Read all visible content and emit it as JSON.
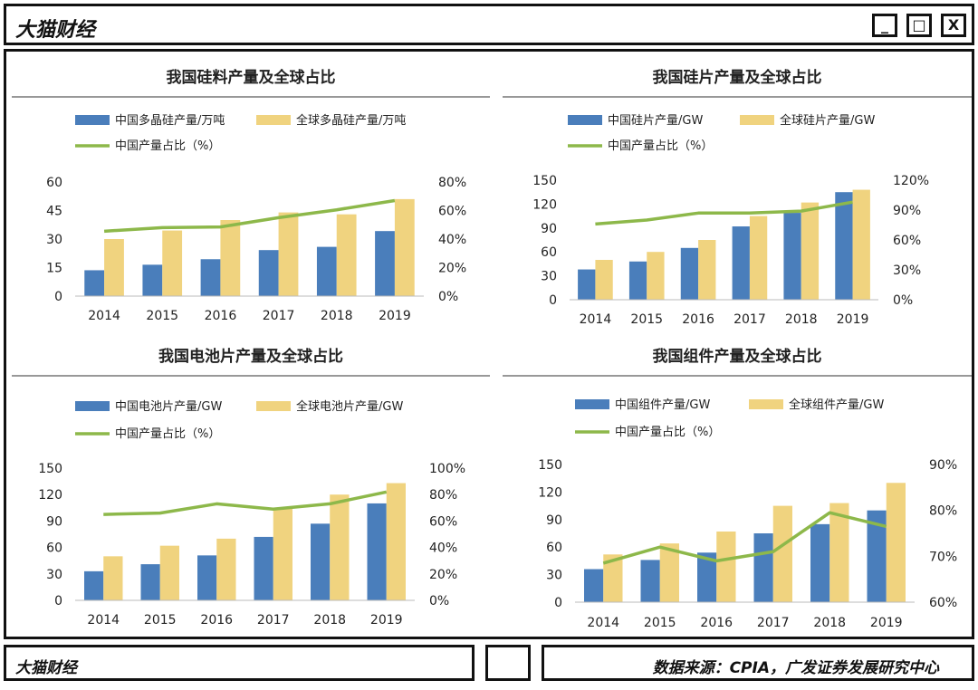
{
  "window": {
    "title": "大猫财经",
    "minimize_label": "_",
    "maximize_label": "□",
    "close_label": "X"
  },
  "footer": {
    "brand": "大猫财经",
    "source": "数据来源：CPIA，广发证券发展研究中心"
  },
  "colors": {
    "china": "#4a7ebb",
    "global": "#f0d37f",
    "share": "#8db84a"
  },
  "chart_data": [
    {
      "type": "bar",
      "title": "我国硅料产量及全球占比",
      "categories": [
        "2014",
        "2015",
        "2016",
        "2017",
        "2018",
        "2019"
      ],
      "series": [
        {
          "name": "中国多晶硅产量/万吨",
          "values": [
            13.6,
            16.5,
            19.4,
            24.2,
            25.9,
            34.2
          ],
          "axis": "left"
        },
        {
          "name": "全球多晶硅产量/万吨",
          "values": [
            30,
            34.5,
            40,
            44,
            43,
            51
          ],
          "axis": "left"
        },
        {
          "name": "中国产量占比（%）",
          "values": [
            45.5,
            48,
            48.5,
            55,
            60.5,
            67
          ],
          "axis": "right",
          "kind": "line"
        }
      ],
      "ylim": [
        0,
        60
      ],
      "yticks": [
        "0",
        "15",
        "30",
        "45",
        "60"
      ],
      "y2lim": [
        0,
        80
      ],
      "y2ticks": [
        "0%",
        "20%",
        "40%",
        "60%",
        "80%"
      ]
    },
    {
      "type": "bar",
      "title": "我国硅片产量及全球占比",
      "categories": [
        "2014",
        "2015",
        "2016",
        "2017",
        "2018",
        "2019"
      ],
      "series": [
        {
          "name": "中国硅片产量/GW",
          "values": [
            38,
            48,
            65,
            92,
            109,
            135
          ],
          "axis": "left"
        },
        {
          "name": "全球硅片产量/GW",
          "values": [
            50,
            60,
            75,
            105,
            122,
            138
          ],
          "axis": "left"
        },
        {
          "name": "中国产量占比（%）",
          "values": [
            76,
            80,
            87,
            87,
            89,
            98
          ],
          "axis": "right",
          "kind": "line"
        }
      ],
      "ylim": [
        0,
        150
      ],
      "yticks": [
        "0",
        "30",
        "60",
        "90",
        "120",
        "150"
      ],
      "y2lim": [
        0,
        120
      ],
      "y2ticks": [
        "0%",
        "30%",
        "60%",
        "90%",
        "120%"
      ]
    },
    {
      "type": "bar",
      "title": "我国电池片产量及全球占比",
      "categories": [
        "2014",
        "2015",
        "2016",
        "2017",
        "2018",
        "2019"
      ],
      "series": [
        {
          "name": "中国电池片产量/GW",
          "values": [
            33,
            41,
            51,
            72,
            87,
            110
          ],
          "axis": "left"
        },
        {
          "name": "全球电池片产量/GW",
          "values": [
            50,
            62,
            70,
            105,
            120,
            133
          ],
          "axis": "left"
        },
        {
          "name": "中国产量占比（%）",
          "values": [
            65,
            66,
            73,
            69,
            73,
            82
          ],
          "axis": "right",
          "kind": "line"
        }
      ],
      "ylim": [
        0,
        150
      ],
      "yticks": [
        "0",
        "30",
        "60",
        "90",
        "120",
        "150"
      ],
      "y2lim": [
        0,
        100
      ],
      "y2ticks": [
        "0%",
        "20%",
        "40%",
        "60%",
        "80%",
        "100%"
      ]
    },
    {
      "type": "bar",
      "title": "我国组件产量及全球占比",
      "categories": [
        "2014",
        "2015",
        "2016",
        "2017",
        "2018",
        "2019"
      ],
      "series": [
        {
          "name": "中国组件产量/GW",
          "values": [
            36,
            46,
            54,
            75,
            85,
            100
          ],
          "axis": "left"
        },
        {
          "name": "全球组件产量/GW",
          "values": [
            52,
            64,
            77,
            105,
            108,
            130
          ],
          "axis": "left"
        },
        {
          "name": "中国产量占比（%）",
          "values": [
            68.5,
            72,
            69,
            71,
            79.5,
            76.5
          ],
          "axis": "right",
          "kind": "line"
        }
      ],
      "ylim": [
        0,
        150
      ],
      "yticks": [
        "0",
        "30",
        "60",
        "90",
        "120",
        "150"
      ],
      "y2lim": [
        60,
        90
      ],
      "y2ticks": [
        "60%",
        "70%",
        "80%",
        "90%"
      ]
    }
  ]
}
